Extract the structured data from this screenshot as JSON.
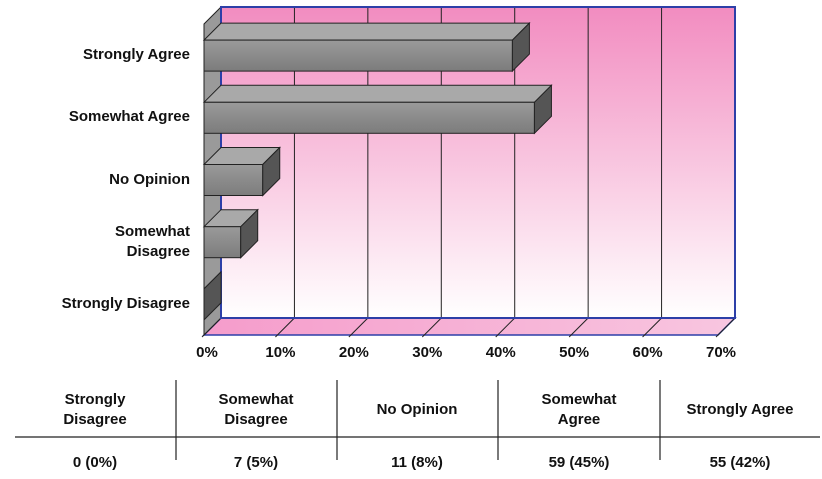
{
  "chart_data": {
    "type": "bar",
    "orientation": "horizontal",
    "categories": [
      "Strongly Agree",
      "Somewhat Agree",
      "No Opinion",
      "Somewhat\nDisagree",
      "Strongly Disagree"
    ],
    "values": [
      42,
      45,
      8,
      5,
      0
    ],
    "color": "#8c8c8c",
    "xlim": [
      0,
      70
    ],
    "xticks": [
      {
        "value": 0,
        "label": "0%"
      },
      {
        "value": 10,
        "label": "10%"
      },
      {
        "value": 20,
        "label": "20%"
      },
      {
        "value": 30,
        "label": "30%"
      },
      {
        "value": 40,
        "label": "40%"
      },
      {
        "value": 50,
        "label": "50%"
      },
      {
        "value": 60,
        "label": "60%"
      },
      {
        "value": 70,
        "label": "70%"
      }
    ],
    "grid": true
  },
  "table": {
    "headers": [
      "Strongly Disagree",
      "Somewhat Disagree",
      "No Opinion",
      "Somewhat Agree",
      "Strongly Agree"
    ],
    "rows": [
      [
        "0  (0%)",
        "7  (5%)",
        "11  (8%)",
        "59  (45%)",
        "55  (42%)"
      ]
    ]
  }
}
